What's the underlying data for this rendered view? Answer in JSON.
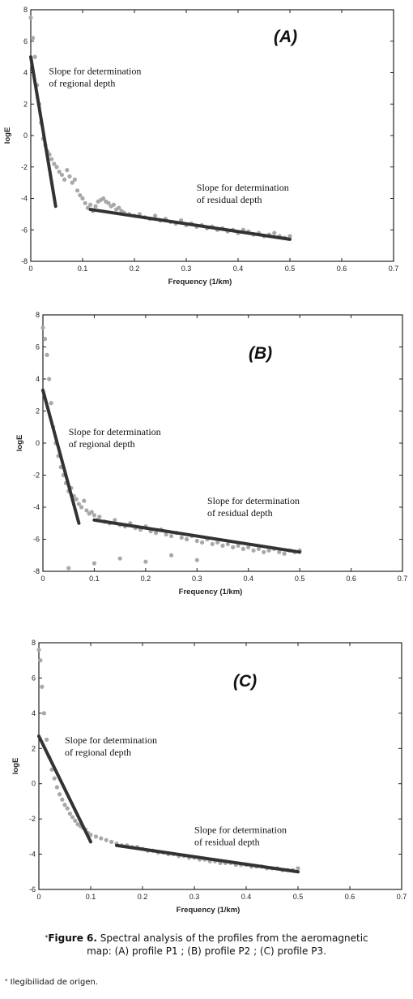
{
  "chart_data": [
    {
      "type": "scatter",
      "panel_label": "(A)",
      "xlabel": "Frequency (1/km)",
      "ylabel": "logE",
      "xlim": [
        0,
        0.7
      ],
      "ylim": [
        -8,
        8
      ],
      "xticks": [
        "0",
        "0.1",
        "0.2",
        "0.3",
        "0.4",
        "0.5",
        "0.6",
        "0.7"
      ],
      "yticks": [
        "8",
        "6",
        "4",
        "2",
        "0",
        "-2",
        "-4",
        "-6",
        "-8"
      ],
      "grid": false,
      "series": [
        {
          "kind": "points",
          "color": "#a8a8a8",
          "x": [
            0.0,
            0.004,
            0.008,
            0.012,
            0.016,
            0.02,
            0.024,
            0.028,
            0.032,
            0.036,
            0.04,
            0.045,
            0.05,
            0.055,
            0.06,
            0.065,
            0.07,
            0.075,
            0.08,
            0.085,
            0.09,
            0.095,
            0.1,
            0.105,
            0.11,
            0.115,
            0.12,
            0.125,
            0.13,
            0.135,
            0.14,
            0.145,
            0.15,
            0.155,
            0.16,
            0.165,
            0.17,
            0.175,
            0.18,
            0.19,
            0.2,
            0.21,
            0.22,
            0.23,
            0.24,
            0.25,
            0.26,
            0.27,
            0.28,
            0.29,
            0.3,
            0.31,
            0.32,
            0.33,
            0.34,
            0.35,
            0.36,
            0.37,
            0.38,
            0.39,
            0.4,
            0.41,
            0.42,
            0.43,
            0.44,
            0.45,
            0.46,
            0.47,
            0.48,
            0.49,
            0.5
          ],
          "y": [
            7.5,
            6.2,
            5.0,
            3.2,
            2.0,
            0.8,
            -0.2,
            -0.6,
            -1.0,
            -1.2,
            -1.5,
            -1.8,
            -2.0,
            -2.3,
            -2.5,
            -2.8,
            -2.2,
            -2.6,
            -3.0,
            -2.8,
            -3.5,
            -3.8,
            -4.0,
            -4.3,
            -4.6,
            -4.4,
            -4.8,
            -4.5,
            -4.2,
            -4.1,
            -4.0,
            -4.2,
            -4.3,
            -4.5,
            -4.4,
            -4.7,
            -4.6,
            -4.8,
            -4.9,
            -5.0,
            -5.1,
            -5.0,
            -5.2,
            -5.3,
            -5.1,
            -5.4,
            -5.3,
            -5.5,
            -5.6,
            -5.4,
            -5.7,
            -5.6,
            -5.8,
            -5.7,
            -5.9,
            -5.8,
            -6.0,
            -5.9,
            -6.1,
            -6.0,
            -6.2,
            -6.0,
            -6.1,
            -6.3,
            -6.2,
            -6.4,
            -6.3,
            -6.2,
            -6.4,
            -6.5,
            -6.4
          ]
        },
        {
          "kind": "line",
          "name": "regional fit",
          "color": "#333333",
          "x": [
            0.0,
            0.048
          ],
          "y": [
            5.0,
            -4.5
          ]
        },
        {
          "kind": "line",
          "name": "residual fit",
          "color": "#333333",
          "x": [
            0.115,
            0.5
          ],
          "y": [
            -4.7,
            -6.6
          ]
        }
      ],
      "annotations": [
        {
          "lines": [
            "Slope for determination",
            "of regional depth"
          ],
          "x": 0.035,
          "y": 3.9
        },
        {
          "lines": [
            "Slope for determination",
            "of residual depth"
          ],
          "x": 0.32,
          "y": -3.5
        }
      ]
    },
    {
      "type": "scatter",
      "panel_label": "(B)",
      "xlabel": "Frequency (1/km)",
      "ylabel": "logE",
      "xlim": [
        0,
        0.7
      ],
      "ylim": [
        -8,
        8
      ],
      "xticks": [
        "0",
        "0.1",
        "0.2",
        "0.3",
        "0.4",
        "0.5",
        "0.6",
        "0.7"
      ],
      "yticks": [
        "8",
        "6",
        "4",
        "2",
        "0",
        "-2",
        "-4",
        "-6",
        "-8"
      ],
      "grid": false,
      "series": [
        {
          "kind": "points",
          "color": "#a8a8a8",
          "x": [
            0.0,
            0.004,
            0.008,
            0.012,
            0.016,
            0.02,
            0.025,
            0.03,
            0.035,
            0.04,
            0.045,
            0.05,
            0.055,
            0.06,
            0.065,
            0.07,
            0.075,
            0.08,
            0.085,
            0.09,
            0.095,
            0.1,
            0.105,
            0.11,
            0.12,
            0.13,
            0.14,
            0.15,
            0.16,
            0.17,
            0.18,
            0.19,
            0.2,
            0.21,
            0.22,
            0.23,
            0.24,
            0.25,
            0.26,
            0.27,
            0.28,
            0.29,
            0.3,
            0.31,
            0.32,
            0.33,
            0.34,
            0.35,
            0.36,
            0.37,
            0.38,
            0.39,
            0.4,
            0.41,
            0.42,
            0.43,
            0.44,
            0.45,
            0.46,
            0.47,
            0.48,
            0.49,
            0.5,
            0.05,
            0.1,
            0.15,
            0.2,
            0.25,
            0.3
          ],
          "y": [
            7.2,
            6.5,
            5.5,
            4.0,
            2.5,
            1.0,
            0.0,
            -0.8,
            -1.5,
            -2.0,
            -2.5,
            -3.0,
            -2.8,
            -3.3,
            -3.5,
            -3.8,
            -4.0,
            -3.6,
            -4.2,
            -4.4,
            -4.3,
            -4.5,
            -4.8,
            -4.6,
            -4.9,
            -5.0,
            -4.8,
            -5.1,
            -5.2,
            -5.0,
            -5.3,
            -5.4,
            -5.2,
            -5.5,
            -5.6,
            -5.4,
            -5.7,
            -5.8,
            -5.6,
            -5.9,
            -6.0,
            -5.8,
            -6.1,
            -6.2,
            -6.0,
            -6.3,
            -6.2,
            -6.4,
            -6.3,
            -6.5,
            -6.4,
            -6.6,
            -6.5,
            -6.7,
            -6.6,
            -6.8,
            -6.7,
            -6.6,
            -6.8,
            -6.9,
            -6.7,
            -6.8,
            -6.7,
            -7.8,
            -7.5,
            -7.2,
            -7.4,
            -7.0,
            -7.3
          ]
        },
        {
          "kind": "line",
          "name": "regional fit",
          "color": "#333333",
          "x": [
            0.0,
            0.07
          ],
          "y": [
            3.3,
            -5.0
          ]
        },
        {
          "kind": "line",
          "name": "residual fit",
          "color": "#333333",
          "x": [
            0.1,
            0.5
          ],
          "y": [
            -4.8,
            -6.8
          ]
        }
      ],
      "annotations": [
        {
          "lines": [
            "Slope for determination",
            "of regional depth"
          ],
          "x": 0.05,
          "y": 0.5
        },
        {
          "lines": [
            "Slope for determination",
            "of residual depth"
          ],
          "x": 0.32,
          "y": -3.8
        }
      ]
    },
    {
      "type": "scatter",
      "panel_label": "(C)",
      "xlabel": "Frequency (1/km)",
      "ylabel": "logE",
      "xlim": [
        0,
        0.7
      ],
      "ylim": [
        -6,
        8
      ],
      "xticks": [
        "0",
        "0.1",
        "0.2",
        "0.3",
        "0.4",
        "0.5",
        "0.6",
        "0.7"
      ],
      "yticks": [
        "8",
        "6",
        "4",
        "2",
        "0",
        "-2",
        "-4",
        "-6"
      ],
      "grid": false,
      "series": [
        {
          "kind": "points",
          "color": "#a8a8a8",
          "x": [
            0.0,
            0.003,
            0.006,
            0.01,
            0.015,
            0.02,
            0.025,
            0.03,
            0.035,
            0.04,
            0.045,
            0.05,
            0.055,
            0.06,
            0.065,
            0.07,
            0.075,
            0.08,
            0.085,
            0.09,
            0.095,
            0.1,
            0.11,
            0.12,
            0.13,
            0.14,
            0.15,
            0.16,
            0.17,
            0.18,
            0.19,
            0.2,
            0.21,
            0.22,
            0.23,
            0.24,
            0.25,
            0.26,
            0.27,
            0.28,
            0.29,
            0.3,
            0.31,
            0.32,
            0.33,
            0.34,
            0.35,
            0.36,
            0.37,
            0.38,
            0.39,
            0.4,
            0.41,
            0.42,
            0.43,
            0.44,
            0.45,
            0.46,
            0.47,
            0.48,
            0.49,
            0.5
          ],
          "y": [
            7.6,
            7.0,
            5.5,
            4.0,
            2.5,
            1.5,
            0.8,
            0.3,
            -0.2,
            -0.6,
            -0.9,
            -1.2,
            -1.4,
            -1.7,
            -1.9,
            -2.1,
            -2.3,
            -2.4,
            -2.5,
            -2.6,
            -2.8,
            -2.9,
            -3.0,
            -3.1,
            -3.2,
            -3.3,
            -3.4,
            -3.5,
            -3.5,
            -3.6,
            -3.6,
            -3.7,
            -3.8,
            -3.8,
            -3.9,
            -3.9,
            -4.0,
            -4.0,
            -4.1,
            -4.1,
            -4.2,
            -4.2,
            -4.3,
            -4.3,
            -4.4,
            -4.4,
            -4.5,
            -4.5,
            -4.5,
            -4.6,
            -4.6,
            -4.6,
            -4.7,
            -4.7,
            -4.7,
            -4.8,
            -4.8,
            -4.8,
            -4.9,
            -4.9,
            -4.9,
            -4.8
          ]
        },
        {
          "kind": "line",
          "name": "regional fit",
          "color": "#333333",
          "x": [
            0.0,
            0.1
          ],
          "y": [
            2.7,
            -3.3
          ]
        },
        {
          "kind": "line",
          "name": "residual fit",
          "color": "#333333",
          "x": [
            0.15,
            0.5
          ],
          "y": [
            -3.5,
            -5.0
          ]
        }
      ],
      "annotations": [
        {
          "lines": [
            "Slope for determination",
            "of regional depth"
          ],
          "x": 0.05,
          "y": 2.3
        },
        {
          "lines": [
            "Slope for determination",
            "of residual depth"
          ],
          "x": 0.3,
          "y": -2.8
        }
      ]
    }
  ],
  "caption": {
    "marker": "*",
    "label": "Figure 6.",
    "text": " Spectral analysis of the profiles from the aeromagnetic map: (A) profile P1 ; (B) profile P2 ; (C) profile P3."
  },
  "footnote": {
    "marker": "*",
    "text": " Ilegibilidad de origen."
  }
}
